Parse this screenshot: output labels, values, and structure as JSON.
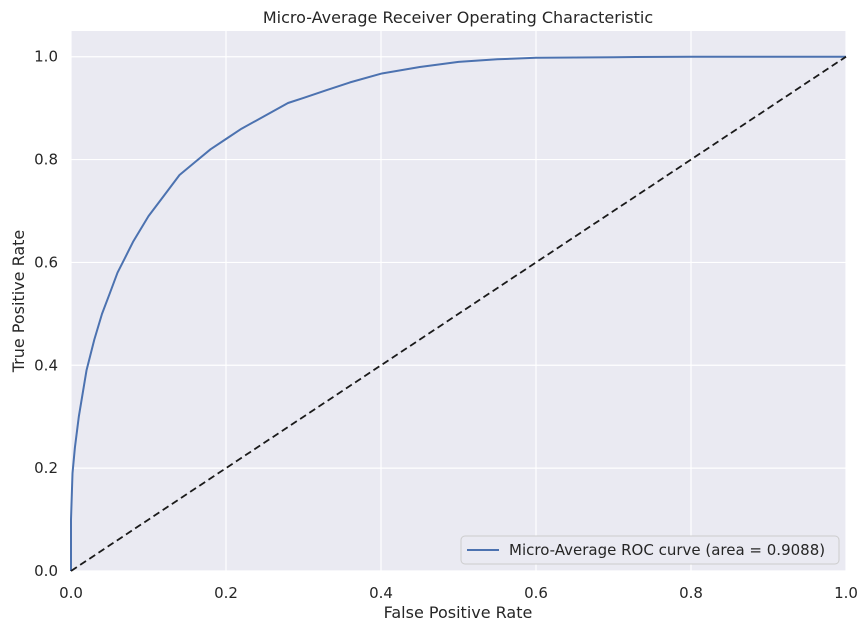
{
  "chart_data": {
    "type": "line",
    "title": "Micro-Average Receiver Operating Characteristic",
    "xlabel": "False Positive Rate",
    "ylabel": "True Positive Rate",
    "xlim": [
      0.0,
      1.0
    ],
    "ylim": [
      0.0,
      1.05
    ],
    "x_ticks": [
      "0.0",
      "0.2",
      "0.4",
      "0.6",
      "0.8",
      "1.0"
    ],
    "y_ticks": [
      "0.0",
      "0.2",
      "0.4",
      "0.6",
      "0.8",
      "1.0"
    ],
    "grid": true,
    "legend_position": "lower-right",
    "series": [
      {
        "name": "Micro-Average ROC curve (area = 0.9088)",
        "color": "#4c72b0",
        "style": "solid",
        "x": [
          0.0,
          0.0,
          0.002,
          0.005,
          0.01,
          0.02,
          0.03,
          0.04,
          0.05,
          0.06,
          0.07,
          0.08,
          0.1,
          0.12,
          0.14,
          0.16,
          0.18,
          0.2,
          0.22,
          0.25,
          0.28,
          0.3,
          0.33,
          0.36,
          0.4,
          0.45,
          0.5,
          0.55,
          0.6,
          0.7,
          0.8,
          1.0
        ],
        "y": [
          0.0,
          0.1,
          0.19,
          0.24,
          0.3,
          0.39,
          0.45,
          0.5,
          0.54,
          0.58,
          0.61,
          0.64,
          0.69,
          0.73,
          0.77,
          0.795,
          0.82,
          0.84,
          0.86,
          0.885,
          0.91,
          0.92,
          0.935,
          0.95,
          0.967,
          0.98,
          0.99,
          0.995,
          0.998,
          0.999,
          1.0,
          1.0
        ]
      },
      {
        "name": "",
        "color": "#1a1a1a",
        "style": "dashed",
        "x": [
          0.0,
          1.0
        ],
        "y": [
          0.0,
          1.0
        ]
      }
    ]
  },
  "colors": {
    "plot_background": "#eaeaf2",
    "grid": "#ffffff",
    "legend_background": "#eaeaf2",
    "legend_border": "#cccccc"
  }
}
